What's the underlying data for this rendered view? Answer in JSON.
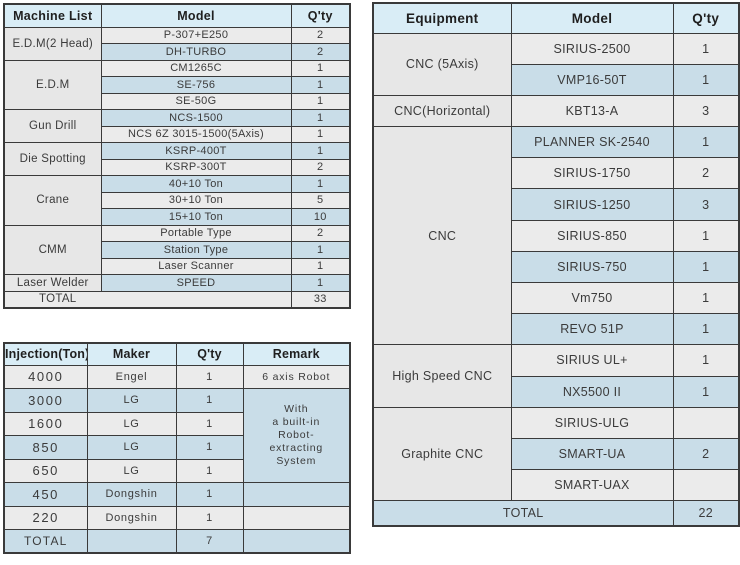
{
  "colors": {
    "border": "#3a3a3a",
    "header_bg": "#d9edf6",
    "row_gray": "#ebebeb",
    "row_blue": "#c9dde8",
    "cat_bg": "#e7e7e7",
    "text": "#3b3b3b"
  },
  "machine_table": {
    "headers": [
      "Machine List",
      "Model",
      "Q'ty"
    ],
    "groups": [
      {
        "category": "E.D.M(2 Head)",
        "rows": [
          [
            "P-307+E250",
            "2"
          ],
          [
            "DH-TURBO",
            "2"
          ]
        ]
      },
      {
        "category": "E.D.M",
        "rows": [
          [
            "CM1265C",
            "1"
          ],
          [
            "SE-756",
            "1"
          ],
          [
            "SE-50G",
            "1"
          ]
        ]
      },
      {
        "category": "Gun Drill",
        "rows": [
          [
            "NCS-1500",
            "1"
          ],
          [
            "NCS 6Z 3015-1500(5Axis)",
            "1"
          ]
        ]
      },
      {
        "category": "Die Spotting",
        "rows": [
          [
            "KSRP-400T",
            "1"
          ],
          [
            "KSRP-300T",
            "2"
          ]
        ]
      },
      {
        "category": "Crane",
        "rows": [
          [
            "40+10 Ton",
            "1"
          ],
          [
            "30+10 Ton",
            "5"
          ],
          [
            "15+10 Ton",
            "10"
          ]
        ]
      },
      {
        "category": "CMM",
        "rows": [
          [
            "Portable Type",
            "2"
          ],
          [
            "Station Type",
            "1"
          ],
          [
            "Laser Scanner",
            "1"
          ]
        ]
      },
      {
        "category": "Laser Welder",
        "rows": [
          [
            "SPEED",
            "1"
          ]
        ]
      }
    ],
    "total_label": "TOTAL",
    "total_qty": "33"
  },
  "injection_table": {
    "headers": [
      "Injection(Ton)",
      "Maker",
      "Q'ty",
      "Remark"
    ],
    "rows": [
      {
        "ton": "4000",
        "maker": "Engel",
        "qty": "1",
        "remark": "6 axis Robot"
      },
      {
        "ton": "3000",
        "maker": "LG",
        "qty": "1"
      },
      {
        "ton": "1600",
        "maker": "LG",
        "qty": "1"
      },
      {
        "ton": "850",
        "maker": "LG",
        "qty": "1"
      },
      {
        "ton": "650",
        "maker": "LG",
        "qty": "1"
      },
      {
        "ton": "450",
        "maker": "Dongshin",
        "qty": "1",
        "remark": ""
      },
      {
        "ton": "220",
        "maker": "Dongshin",
        "qty": "1",
        "remark": ""
      }
    ],
    "merged_remark_lines": [
      "With",
      "a built-in",
      "Robot-",
      "extracting",
      "System"
    ],
    "total_label": "TOTAL",
    "total_qty": "7"
  },
  "equipment_table": {
    "headers": [
      "Equipment",
      "Model",
      "Q'ty"
    ],
    "groups": [
      {
        "category": "CNC (5Axis)",
        "rows": [
          [
            "SIRIUS-2500",
            "1"
          ],
          [
            "VMP16-50T",
            "1"
          ]
        ]
      },
      {
        "category": "CNC(Horizontal)",
        "rows": [
          [
            "KBT13-A",
            "3"
          ]
        ]
      },
      {
        "category": "CNC",
        "rows": [
          [
            "PLANNER SK-2540",
            "1"
          ],
          [
            "SIRIUS-1750",
            "2"
          ],
          [
            "SIRIUS-1250",
            "3"
          ],
          [
            "SIRIUS-850",
            "1"
          ],
          [
            "SIRIUS-750",
            "1"
          ],
          [
            "Vm750",
            "1"
          ],
          [
            "REVO 51P",
            "1"
          ]
        ]
      },
      {
        "category": "High Speed CNC",
        "rows": [
          [
            "SIRIUS UL+",
            "1"
          ],
          [
            "NX5500 II",
            "1"
          ]
        ]
      },
      {
        "category": "Graphite CNC",
        "rows": [
          [
            "SIRIUS-ULG",
            ""
          ],
          [
            "SMART-UA",
            "2"
          ],
          [
            "SMART-UAX",
            ""
          ]
        ]
      }
    ],
    "total_label": "TOTAL",
    "total_qty": "22"
  }
}
